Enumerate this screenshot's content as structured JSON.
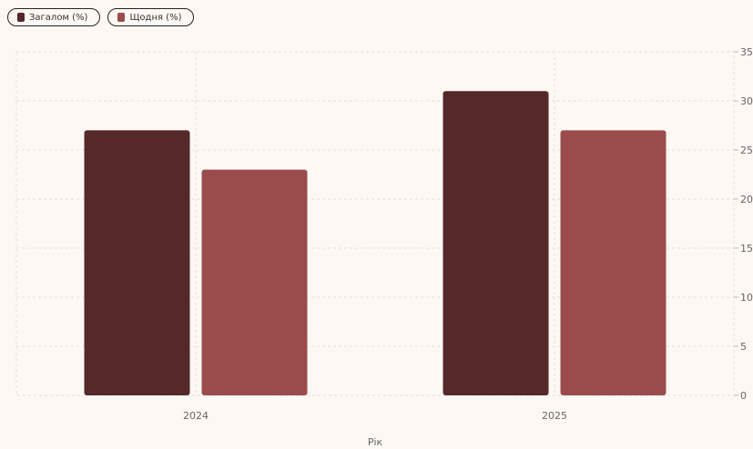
{
  "legend": [
    {
      "label": "Загалом (%)",
      "color": "#55282a"
    },
    {
      "label": "Щодня (%)",
      "color": "#9a4c4c"
    }
  ],
  "chart_data": {
    "type": "bar",
    "categories": [
      "2024",
      "2025"
    ],
    "series": [
      {
        "name": "Загалом (%)",
        "values": [
          27,
          31
        ],
        "color": "#55282a"
      },
      {
        "name": "Щодня (%)",
        "values": [
          23,
          27
        ],
        "color": "#9a4c4c"
      }
    ],
    "xlabel": "Рік",
    "ylabel": "",
    "ylim": [
      0,
      35
    ],
    "yticks": [
      0,
      5,
      10,
      15,
      20,
      25,
      30,
      35
    ],
    "grid": true,
    "legend_position": "top-left"
  }
}
